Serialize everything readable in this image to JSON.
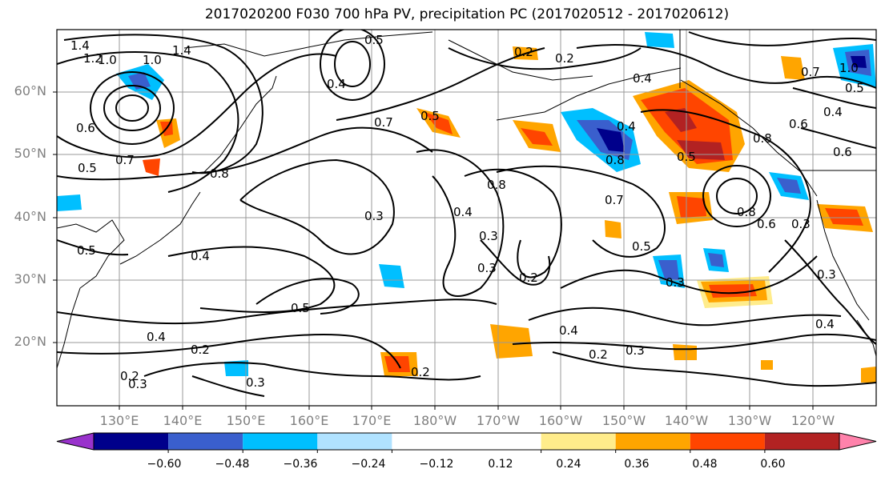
{
  "title": "2017020200 F030 700 hPa PV, precipitation PC (2017020512 - 2017020612)",
  "lat_labels": [
    "60°N",
    "50°N",
    "40°N",
    "30°N",
    "20°N"
  ],
  "lon_labels": [
    "130°E",
    "140°E",
    "150°E",
    "160°E",
    "170°E",
    "180°W",
    "170°W",
    "160°W",
    "150°W",
    "140°W",
    "130°W",
    "120°W"
  ],
  "colorbar": {
    "colors": [
      "#9932cc",
      "#00008b",
      "#3a5fcd",
      "#00bfff",
      "#b0e2ff",
      "#ffffff",
      "#ffffff",
      "#ffec8b",
      "#ffa500",
      "#ff4500",
      "#b22222",
      "#ff82ab"
    ],
    "ticks": [
      "−0.60",
      "−0.48",
      "−0.36",
      "−0.24",
      "−0.12",
      "0.12",
      "0.24",
      "0.36",
      "0.48",
      "0.60"
    ]
  },
  "contour_labels": [
    "1.4",
    "1.2",
    "1.0",
    "1.0",
    "1.4",
    "0.6",
    "0.5",
    "0.7",
    "0.8",
    "0.4",
    "0.4",
    "0.5",
    "0.3",
    "0.2",
    "0.2",
    "0.3",
    "0.3",
    "0.5",
    "0.4",
    "0.2",
    "0.3",
    "0.2",
    "0.4",
    "0.3",
    "0.2",
    "0.4",
    "0.5",
    "0.7",
    "0.8",
    "0.4",
    "0.5",
    "0.8",
    "0.7",
    "0.4",
    "0.2",
    "0.3",
    "0.5",
    "0.3",
    "0.7",
    "0.8",
    "0.6",
    "0.3",
    "0.3",
    "0.4",
    "0.6",
    "0.8",
    "0.5",
    "1.0",
    "0.2",
    "0.5",
    "0.4",
    "0.6"
  ]
}
